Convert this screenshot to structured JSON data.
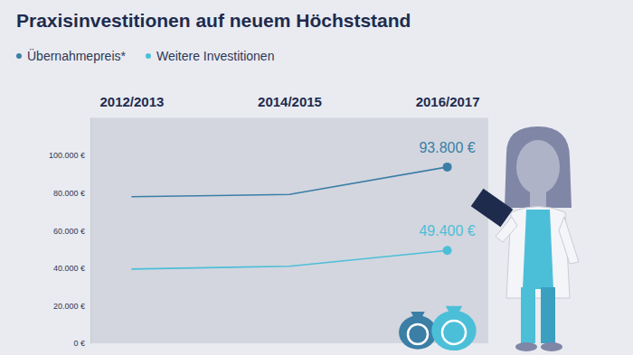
{
  "chart_data": {
    "type": "line",
    "title": "Praxisinvestitionen auf neuem Höchststand",
    "categories": [
      "2012/2013",
      "2014/2015",
      "2016/2017"
    ],
    "series": [
      {
        "name": "Übernahmepreis*",
        "color": "#3b7ea6",
        "values": [
          78000,
          79200,
          93800
        ],
        "value_labels": [
          null,
          null,
          "93.800 €"
        ]
      },
      {
        "name": "Weitere Investitionen",
        "color": "#4cbfd8",
        "values": [
          39500,
          41000,
          49400
        ],
        "value_labels": [
          null,
          null,
          "49.400 €"
        ]
      }
    ],
    "ylim": [
      0,
      120000
    ],
    "yticks": [
      {
        "value": 0,
        "label": "0 €"
      },
      {
        "value": 20000,
        "label": "20.000 €"
      },
      {
        "value": 40000,
        "label": "40.000 €"
      },
      {
        "value": 60000,
        "label": "60.000 €"
      },
      {
        "value": 80000,
        "label": "80.000 €"
      },
      {
        "value": 100000,
        "label": "100.000 €"
      }
    ],
    "grid": false,
    "legend": "top left"
  }
}
